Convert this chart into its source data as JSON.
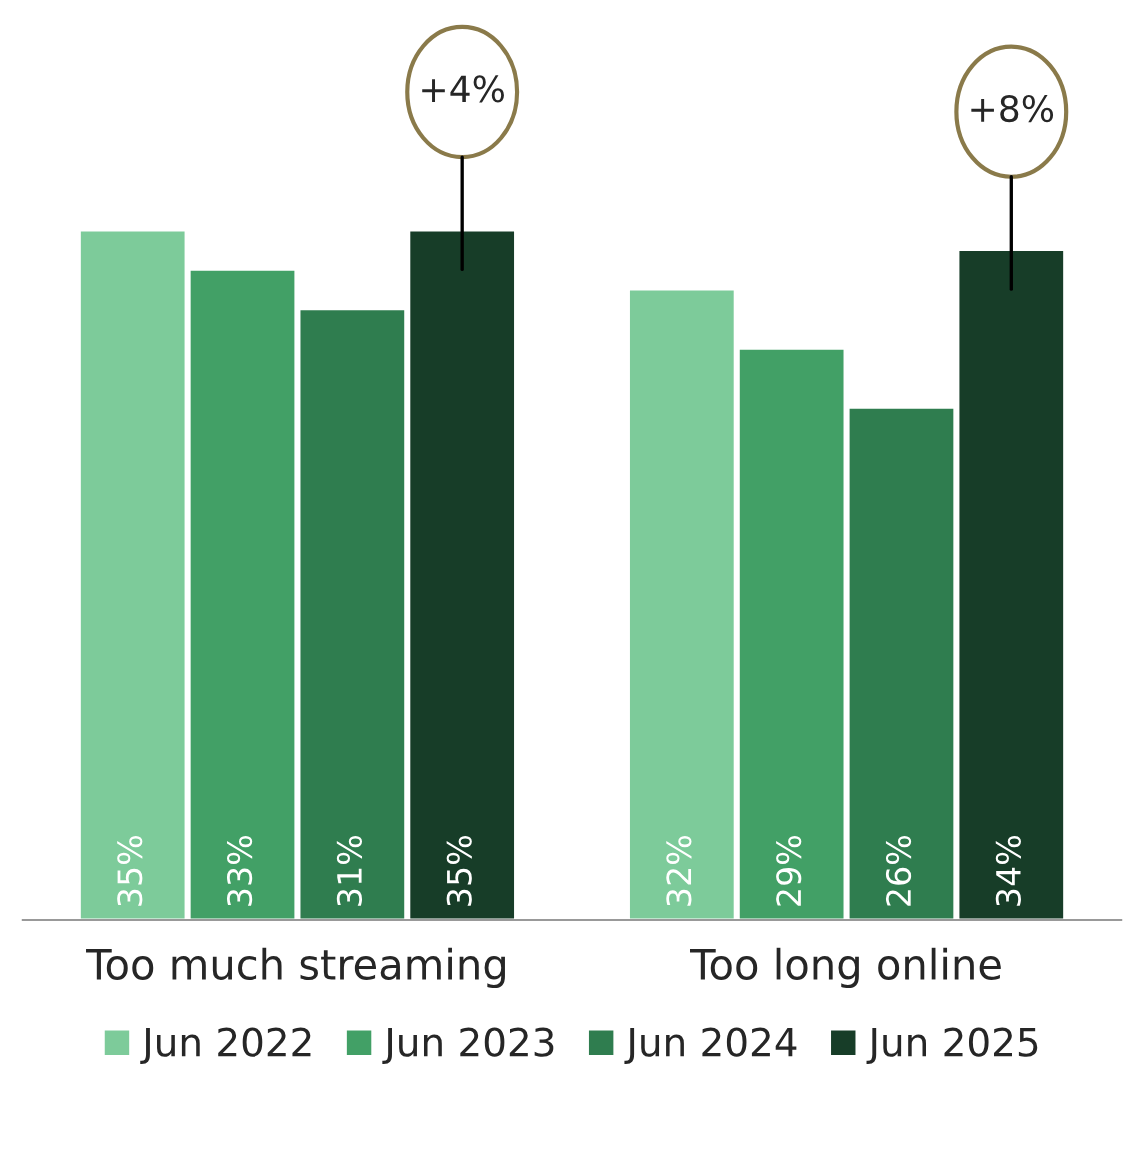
{
  "chart_data": {
    "type": "bar",
    "categories": [
      "Too much streaming",
      "Too long online"
    ],
    "series": [
      {
        "name": "Jun 2022",
        "color": "#7dcb9a",
        "values": [
          35,
          32
        ],
        "value_labels": [
          "35%",
          "32%"
        ]
      },
      {
        "name": "Jun 2023",
        "color": "#42a066",
        "values": [
          33,
          29
        ],
        "value_labels": [
          "33%",
          "29%"
        ]
      },
      {
        "name": "Jun 2024",
        "color": "#2f7d4f",
        "values": [
          31,
          26
        ],
        "value_labels": [
          "31%",
          "26%"
        ]
      },
      {
        "name": "Jun 2025",
        "color": "#173d28",
        "values": [
          35,
          34
        ],
        "value_labels": [
          "35%",
          "34%"
        ]
      }
    ],
    "annotations": [
      "+4%",
      "+8%"
    ],
    "legend": "bottom",
    "grid": false
  }
}
